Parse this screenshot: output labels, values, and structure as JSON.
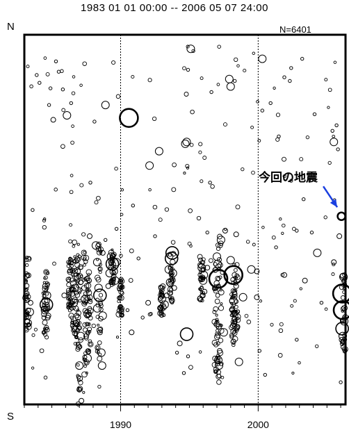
{
  "chart_data": {
    "type": "scatter",
    "title": "1983 01 01 00:00 -- 2006 05 07 24:00",
    "axis_top_label": "N",
    "axis_bottom_label": "S",
    "count_label": "N=6401",
    "xlim": [
      1983.0,
      2006.35
    ],
    "ylim": [
      0,
      100
    ],
    "x_tick_labels": [
      "1990",
      "2000"
    ],
    "x_tick_values": [
      1990,
      2000
    ],
    "y_direction": "top=N, bottom=S",
    "grid": "dashed vertical lines at 1990 and 2000",
    "annotation": {
      "text": "今回の地震",
      "arrow_color": "#1a3fe0",
      "points_to": {
        "x": 2006.05,
        "y": 50.9
      }
    },
    "marker": "open circle, size proportional to magnitude",
    "series": [
      {
        "points": [
          {
            "x": 1983.15,
            "y": 24.3,
            "s": "xs"
          },
          {
            "x": 1983.2,
            "y": 22.5,
            "s": "s"
          },
          {
            "x": 1983.25,
            "y": 22.0,
            "s": "m"
          },
          {
            "x": 1983.3,
            "y": 23.7,
            "s": "s"
          },
          {
            "x": 1983.35,
            "y": 21.5,
            "s": "xs"
          },
          {
            "x": 1983.4,
            "y": 25.0,
            "s": "m"
          },
          {
            "x": 1983.45,
            "y": 27.5,
            "s": "s"
          },
          {
            "x": 1983.3,
            "y": 34.9,
            "s": "s"
          },
          {
            "x": 1983.35,
            "y": 39.5,
            "s": "xs"
          },
          {
            "x": 1983.9,
            "y": 89.1,
            "s": "xs"
          },
          {
            "x": 1984.1,
            "y": 87.0,
            "s": "xs"
          },
          {
            "x": 1983.6,
            "y": 52.6,
            "s": "xs"
          },
          {
            "x": 1984.5,
            "y": 25.5,
            "s": "m"
          },
          {
            "x": 1984.6,
            "y": 27.0,
            "s": "l"
          },
          {
            "x": 1984.55,
            "y": 28.0,
            "s": "m"
          },
          {
            "x": 1984.65,
            "y": 29.5,
            "s": "m"
          },
          {
            "x": 1984.7,
            "y": 23.5,
            "s": "s"
          },
          {
            "x": 1984.5,
            "y": 32.0,
            "s": "s"
          },
          {
            "x": 1984.6,
            "y": 20.5,
            "s": "xs"
          },
          {
            "x": 1984.75,
            "y": 24.0,
            "s": "s"
          },
          {
            "x": 1984.7,
            "y": 35.5,
            "s": "xs"
          },
          {
            "x": 1984.8,
            "y": 81.0,
            "s": "xs"
          },
          {
            "x": 1985.1,
            "y": 77.0,
            "s": "s"
          },
          {
            "x": 1984.9,
            "y": 85.5,
            "s": "xs"
          },
          {
            "x": 1985.3,
            "y": 92.8,
            "s": "xs"
          },
          {
            "x": 1985.5,
            "y": 90.0,
            "s": "xs"
          },
          {
            "x": 1985.8,
            "y": 85.2,
            "s": "xs"
          },
          {
            "x": 1986.1,
            "y": 78.2,
            "s": "m"
          },
          {
            "x": 1986.4,
            "y": 81.5,
            "s": "xs"
          },
          {
            "x": 1985.9,
            "y": 29.5,
            "s": "s"
          },
          {
            "x": 1986.2,
            "y": 33.5,
            "s": "xs"
          },
          {
            "x": 1986.35,
            "y": 27.0,
            "s": "xs"
          },
          {
            "x": 1986.6,
            "y": 27.5,
            "s": "m"
          },
          {
            "x": 1986.7,
            "y": 31.5,
            "s": "m"
          },
          {
            "x": 1986.8,
            "y": 24.0,
            "s": "s"
          },
          {
            "x": 1986.65,
            "y": 20.5,
            "s": "s"
          },
          {
            "x": 1986.9,
            "y": 36.0,
            "s": "s"
          },
          {
            "x": 1986.95,
            "y": 15.5,
            "s": "s"
          },
          {
            "x": 1987.0,
            "y": 4.0,
            "s": "s"
          },
          {
            "x": 1987.05,
            "y": 7.0,
            "s": "s"
          },
          {
            "x": 1987.0,
            "y": 10.5,
            "s": "m"
          },
          {
            "x": 1987.1,
            "y": 18.5,
            "s": "m"
          },
          {
            "x": 1987.15,
            "y": 1.0,
            "s": "s"
          },
          {
            "x": 1987.6,
            "y": 12.5,
            "s": "m"
          },
          {
            "x": 1987.5,
            "y": 18.5,
            "s": "s"
          },
          {
            "x": 1987.6,
            "y": 24.5,
            "s": "m"
          },
          {
            "x": 1987.4,
            "y": 28.5,
            "s": "m"
          },
          {
            "x": 1987.7,
            "y": 33.5,
            "s": "s"
          },
          {
            "x": 1987.75,
            "y": 45.5,
            "s": "s"
          },
          {
            "x": 1987.8,
            "y": 60.0,
            "s": "xs"
          },
          {
            "x": 1988.3,
            "y": 26.0,
            "s": "m"
          },
          {
            "x": 1988.5,
            "y": 29.5,
            "s": "l"
          },
          {
            "x": 1988.4,
            "y": 31.5,
            "s": "m"
          },
          {
            "x": 1988.7,
            "y": 24.0,
            "s": "m"
          },
          {
            "x": 1988.5,
            "y": 19.5,
            "s": "s"
          },
          {
            "x": 1988.6,
            "y": 14.0,
            "s": "m"
          },
          {
            "x": 1988.65,
            "y": 10.5,
            "s": "m"
          },
          {
            "x": 1988.3,
            "y": 38.5,
            "s": "m"
          },
          {
            "x": 1988.2,
            "y": 43.0,
            "s": "m"
          },
          {
            "x": 1988.7,
            "y": 41.0,
            "s": "s"
          },
          {
            "x": 1988.9,
            "y": 44.5,
            "s": "xs"
          },
          {
            "x": 1989.2,
            "y": 35.5,
            "s": "m"
          },
          {
            "x": 1989.4,
            "y": 38.0,
            "s": "l"
          },
          {
            "x": 1989.5,
            "y": 36.0,
            "s": "m"
          },
          {
            "x": 1989.3,
            "y": 40.0,
            "s": "m"
          },
          {
            "x": 1989.6,
            "y": 33.5,
            "s": "m"
          },
          {
            "x": 1989.1,
            "y": 32.0,
            "s": "s"
          },
          {
            "x": 1989.7,
            "y": 38.5,
            "s": "m"
          },
          {
            "x": 1988.9,
            "y": 81.0,
            "s": "m"
          },
          {
            "x": 1988.1,
            "y": 76.5,
            "s": "xs"
          },
          {
            "x": 1989.7,
            "y": 47.5,
            "s": "xs"
          },
          {
            "x": 1990.6,
            "y": 77.5,
            "s": "xl"
          },
          {
            "x": 1990.8,
            "y": 19.5,
            "s": "s"
          },
          {
            "x": 1990.5,
            "y": 25.5,
            "s": "xs"
          },
          {
            "x": 1990.9,
            "y": 53.8,
            "s": "xs"
          },
          {
            "x": 1991.3,
            "y": 39.5,
            "s": "xs"
          },
          {
            "x": 1991.6,
            "y": 23.5,
            "s": "xs"
          },
          {
            "x": 1992.1,
            "y": 64.6,
            "s": "m"
          },
          {
            "x": 1992.5,
            "y": 45.5,
            "s": "xs"
          },
          {
            "x": 1992.0,
            "y": 27.5,
            "s": "s"
          },
          {
            "x": 1992.2,
            "y": 24.5,
            "s": "xs"
          },
          {
            "x": 1992.8,
            "y": 68.5,
            "s": "m"
          },
          {
            "x": 1993.0,
            "y": 28.5,
            "s": "m"
          },
          {
            "x": 1993.2,
            "y": 27.0,
            "s": "m"
          },
          {
            "x": 1993.35,
            "y": 29.5,
            "s": "s"
          },
          {
            "x": 1993.5,
            "y": 36.5,
            "s": "m"
          },
          {
            "x": 1993.6,
            "y": 33.0,
            "s": "m"
          },
          {
            "x": 1993.7,
            "y": 39.5,
            "s": "l"
          },
          {
            "x": 1993.75,
            "y": 41.0,
            "s": "l"
          },
          {
            "x": 1993.8,
            "y": 35.5,
            "s": "m"
          },
          {
            "x": 1993.9,
            "y": 31.5,
            "s": "s"
          },
          {
            "x": 1994.3,
            "y": 16.5,
            "s": "s"
          },
          {
            "x": 1994.1,
            "y": 14.0,
            "s": "xs"
          },
          {
            "x": 1994.6,
            "y": 8.5,
            "s": "xs"
          },
          {
            "x": 1994.9,
            "y": 13.0,
            "s": "xs"
          },
          {
            "x": 1994.8,
            "y": 19.0,
            "s": "l"
          },
          {
            "x": 1994.7,
            "y": 70.5,
            "s": "m"
          },
          {
            "x": 1994.8,
            "y": 71.0,
            "s": "m"
          },
          {
            "x": 1994.9,
            "y": 90.5,
            "s": "xs"
          },
          {
            "x": 1995.1,
            "y": 96.2,
            "s": "m"
          },
          {
            "x": 1995.9,
            "y": 37.0,
            "s": "m"
          },
          {
            "x": 1996.0,
            "y": 33.5,
            "s": "m"
          },
          {
            "x": 1996.05,
            "y": 35.0,
            "s": "m"
          },
          {
            "x": 1996.1,
            "y": 30.5,
            "s": "s"
          },
          {
            "x": 1996.3,
            "y": 37.0,
            "s": "s"
          },
          {
            "x": 1996.3,
            "y": 46.5,
            "s": "xs"
          },
          {
            "x": 1996.5,
            "y": 60.0,
            "s": "xs"
          },
          {
            "x": 1996.6,
            "y": 84.5,
            "s": "xs"
          },
          {
            "x": 1997.1,
            "y": 34.0,
            "s": "xl"
          },
          {
            "x": 1997.0,
            "y": 40.0,
            "s": "m"
          },
          {
            "x": 1997.05,
            "y": 38.0,
            "s": "m"
          },
          {
            "x": 1997.1,
            "y": 12.0,
            "s": "m"
          },
          {
            "x": 1997.15,
            "y": 10.5,
            "s": "m"
          },
          {
            "x": 1997.2,
            "y": 14.5,
            "s": "s"
          },
          {
            "x": 1997.3,
            "y": 44.5,
            "s": "m"
          },
          {
            "x": 1997.5,
            "y": 19.5,
            "s": "m"
          },
          {
            "x": 1997.6,
            "y": 47.0,
            "s": "s"
          },
          {
            "x": 1998.2,
            "y": 35.0,
            "s": "xl"
          },
          {
            "x": 1998.0,
            "y": 39.0,
            "s": "m"
          },
          {
            "x": 1998.2,
            "y": 28.0,
            "s": "m"
          },
          {
            "x": 1998.25,
            "y": 24.5,
            "s": "s"
          },
          {
            "x": 1998.2,
            "y": 17.0,
            "s": "s"
          },
          {
            "x": 1998.4,
            "y": 32.0,
            "s": "s"
          },
          {
            "x": 1998.4,
            "y": 46.0,
            "s": "s"
          },
          {
            "x": 1998.6,
            "y": 11.5,
            "s": "m"
          },
          {
            "x": 1998.0,
            "y": 86.0,
            "s": "m"
          },
          {
            "x": 1997.9,
            "y": 88.0,
            "s": "m"
          },
          {
            "x": 1998.3,
            "y": 87.5,
            "s": "xs"
          },
          {
            "x": 1998.9,
            "y": 29.0,
            "s": "m"
          },
          {
            "x": 1999.9,
            "y": 29.0,
            "s": "s"
          },
          {
            "x": 1999.5,
            "y": 36.5,
            "s": "m"
          },
          {
            "x": 1999.9,
            "y": 36.0,
            "s": "s"
          },
          {
            "x": 2000.3,
            "y": 93.5,
            "s": "m"
          },
          {
            "x": 2000.3,
            "y": 79.5,
            "s": "xs"
          },
          {
            "x": 2000.5,
            "y": 8.0,
            "s": "xs"
          },
          {
            "x": 2000.1,
            "y": 14.5,
            "s": "xs"
          },
          {
            "x": 2000.9,
            "y": 81.5,
            "s": "xs"
          },
          {
            "x": 2001.3,
            "y": 42.5,
            "s": "xs"
          },
          {
            "x": 2001.9,
            "y": 35.0,
            "s": "s"
          },
          {
            "x": 2001.5,
            "y": 72.5,
            "s": "xs"
          },
          {
            "x": 2001.9,
            "y": 88.5,
            "s": "xs"
          },
          {
            "x": 2002.3,
            "y": 87.5,
            "s": "xs"
          },
          {
            "x": 2002.4,
            "y": 91.0,
            "s": "xs"
          },
          {
            "x": 2002.4,
            "y": 60.5,
            "s": "xs"
          },
          {
            "x": 2002.8,
            "y": 47.0,
            "s": "xs"
          },
          {
            "x": 2002.8,
            "y": 17.5,
            "s": "xs"
          },
          {
            "x": 2003.2,
            "y": 93.5,
            "s": "xs"
          },
          {
            "x": 2003.3,
            "y": 55.5,
            "s": "xs"
          },
          {
            "x": 2003.4,
            "y": 33.5,
            "s": "s"
          },
          {
            "x": 2003.9,
            "y": 46.5,
            "s": "xs"
          },
          {
            "x": 2004.1,
            "y": 78.5,
            "s": "xs"
          },
          {
            "x": 2004.3,
            "y": 41.0,
            "s": "m"
          },
          {
            "x": 2004.6,
            "y": 27.5,
            "s": "xs"
          },
          {
            "x": 2005.5,
            "y": 71.0,
            "s": "m"
          },
          {
            "x": 2005.4,
            "y": 74.0,
            "s": "xs"
          },
          {
            "x": 2005.7,
            "y": 75.5,
            "s": "xs"
          },
          {
            "x": 2005.8,
            "y": 69.0,
            "s": "xs"
          },
          {
            "x": 2005.5,
            "y": 38.5,
            "s": "s"
          },
          {
            "x": 2005.9,
            "y": 45.5,
            "s": "s"
          },
          {
            "x": 2006.05,
            "y": 50.9,
            "s": "m",
            "highlight": true
          },
          {
            "x": 2006.1,
            "y": 30.0,
            "s": "xl"
          },
          {
            "x": 2006.15,
            "y": 25.5,
            "s": "xl"
          },
          {
            "x": 2006.1,
            "y": 20.5,
            "s": "l"
          },
          {
            "x": 2006.15,
            "y": 18.5,
            "s": "m"
          },
          {
            "x": 2006.2,
            "y": 15.5,
            "s": "s"
          },
          {
            "x": 2006.2,
            "y": 34.5,
            "s": "m"
          },
          {
            "x": 2006.25,
            "y": 22.5,
            "s": "m"
          },
          {
            "x": 2006.0,
            "y": 6.0,
            "s": "xs"
          }
        ]
      }
    ]
  },
  "colors": {
    "marker_stroke": "#000000",
    "axis": "#000000",
    "arrow": "#1a3fe0"
  }
}
